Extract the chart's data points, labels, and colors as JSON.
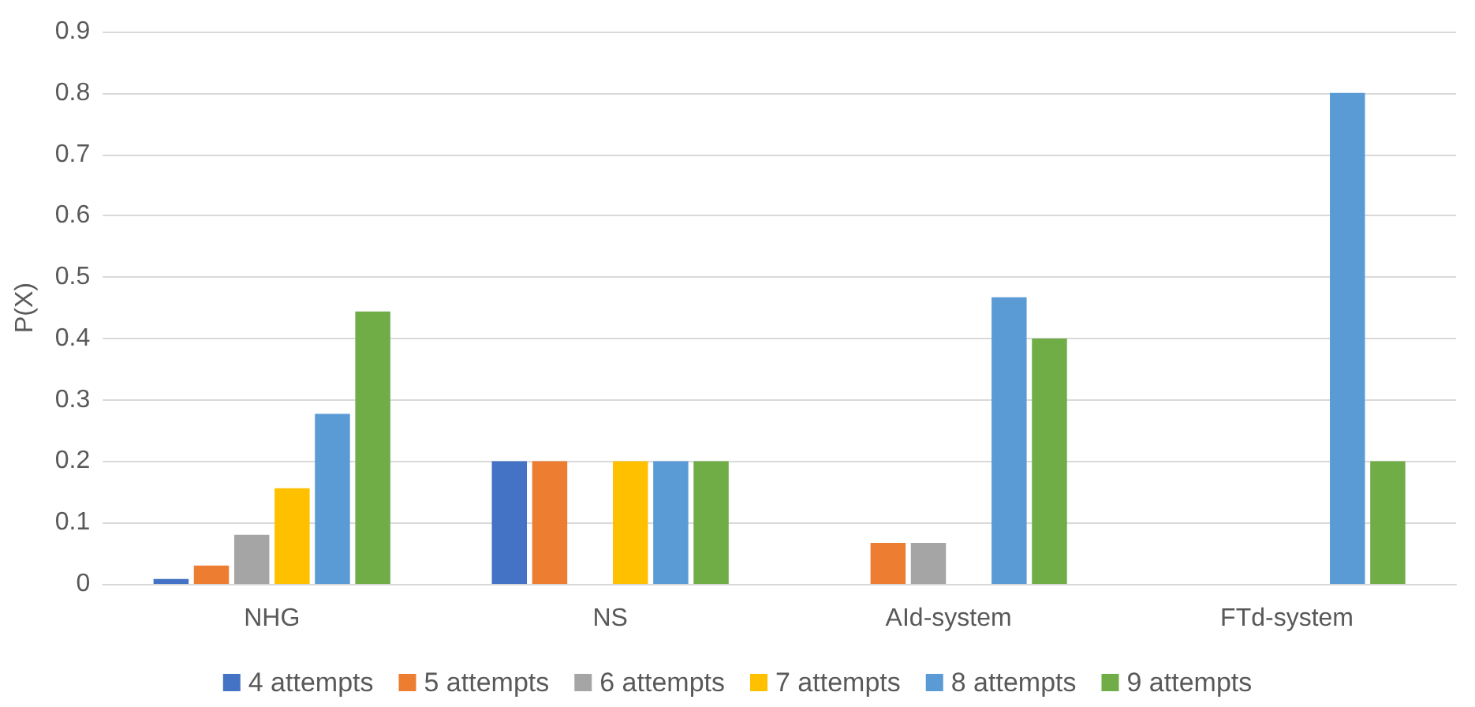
{
  "chart_data": {
    "type": "bar",
    "ylabel": "P(X)",
    "categories": [
      "NHG",
      "NS",
      "AId-system",
      "FTd-system"
    ],
    "series": [
      {
        "name": "4 attempts",
        "color": "#4472c4",
        "values": [
          0.008,
          0.2,
          0,
          0
        ]
      },
      {
        "name": "5 attempts",
        "color": "#ed7d31",
        "values": [
          0.03,
          0.2,
          0.067,
          0
        ]
      },
      {
        "name": "6 attempts",
        "color": "#a5a5a5",
        "values": [
          0.08,
          0,
          0.067,
          0
        ]
      },
      {
        "name": "7 attempts",
        "color": "#ffc000",
        "values": [
          0.156,
          0.2,
          0,
          0
        ]
      },
      {
        "name": "8 attempts",
        "color": "#5b9bd5",
        "values": [
          0.277,
          0.2,
          0.467,
          0.8
        ]
      },
      {
        "name": "9 attempts",
        "color": "#70ad47",
        "values": [
          0.444,
          0.2,
          0.4,
          0.2
        ]
      }
    ],
    "ylim": [
      0,
      0.9
    ],
    "yticks": [
      0,
      0.1,
      0.2,
      0.3,
      0.4,
      0.5,
      0.6,
      0.7,
      0.8,
      0.9
    ],
    "grid": "y",
    "legend": "bottom"
  }
}
